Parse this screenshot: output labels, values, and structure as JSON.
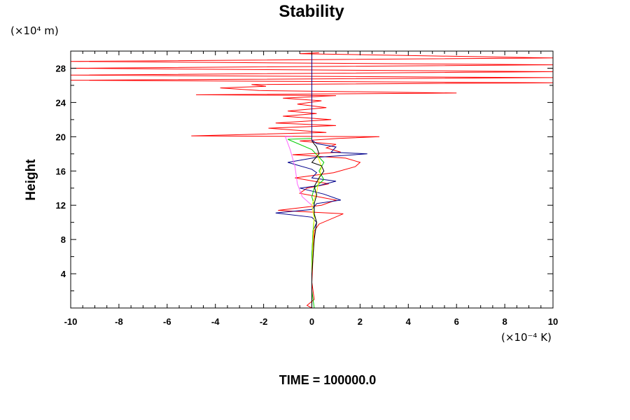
{
  "chart_data": {
    "type": "line",
    "title": "Stability",
    "ylabel": "Height",
    "y_unit": "(×10⁴ m)",
    "x_unit": "(×10⁻⁴ K)",
    "footer": "TIME = 100000.0",
    "xlim": [
      -10,
      10
    ],
    "ylim": [
      0,
      30
    ],
    "x_ticks": [
      -10,
      -8,
      -6,
      -4,
      -2,
      0,
      2,
      4,
      6,
      8,
      10
    ],
    "y_ticks": [
      4,
      8,
      12,
      16,
      20,
      24,
      28
    ],
    "grid": false,
    "legend": "none",
    "series": [
      {
        "color": "#ff0000",
        "points": [
          [
            0.0,
            0.0
          ],
          [
            -0.2,
            0.3
          ],
          [
            0.1,
            1.0
          ],
          [
            0.0,
            3.0
          ],
          [
            0.05,
            6.0
          ],
          [
            0.1,
            9.0
          ],
          [
            0.3,
            9.8
          ],
          [
            1.3,
            11.0
          ],
          [
            -1.4,
            11.4
          ],
          [
            0.4,
            12.0
          ],
          [
            1.0,
            12.6
          ],
          [
            -0.5,
            13.4
          ],
          [
            -0.2,
            14.0
          ],
          [
            0.7,
            14.5
          ],
          [
            -0.7,
            15.2
          ],
          [
            0.9,
            15.8
          ],
          [
            1.8,
            16.5
          ],
          [
            2.0,
            17.0
          ],
          [
            1.4,
            17.5
          ],
          [
            -0.8,
            17.9
          ],
          [
            1.2,
            18.2
          ],
          [
            0.6,
            18.7
          ],
          [
            1.0,
            19.1
          ],
          [
            -0.5,
            19.5
          ],
          [
            1.1,
            19.8
          ],
          [
            2.8,
            20.0
          ],
          [
            -5.0,
            20.1
          ],
          [
            0.6,
            20.5
          ],
          [
            -1.8,
            21.0
          ],
          [
            1.0,
            21.3
          ],
          [
            -1.5,
            21.6
          ],
          [
            0.8,
            22.0
          ],
          [
            -1.2,
            22.4
          ],
          [
            0.2,
            22.7
          ],
          [
            -1.0,
            23.0
          ],
          [
            0.6,
            23.4
          ],
          [
            -0.6,
            23.8
          ],
          [
            0.4,
            24.2
          ],
          [
            -1.2,
            24.5
          ],
          [
            1.0,
            24.8
          ],
          [
            -4.8,
            24.9
          ],
          [
            6.0,
            25.1
          ],
          [
            -2.2,
            25.4
          ],
          [
            -3.8,
            25.7
          ],
          [
            -1.9,
            25.9
          ],
          [
            -2.5,
            26.1
          ],
          [
            10.0,
            26.3
          ],
          [
            -10.0,
            26.6
          ],
          [
            10.0,
            26.9
          ],
          [
            -10.0,
            27.2
          ],
          [
            10.0,
            27.6
          ],
          [
            -10.0,
            28.0
          ],
          [
            10.0,
            28.4
          ],
          [
            -10.0,
            28.8
          ],
          [
            10.0,
            29.2
          ],
          [
            -0.5,
            29.7
          ],
          [
            0.3,
            29.8
          ]
        ]
      },
      {
        "color": "#00008b",
        "points": [
          [
            0.0,
            0.0
          ],
          [
            0.0,
            3.0
          ],
          [
            0.0,
            6.0
          ],
          [
            0.05,
            9.0
          ],
          [
            0.2,
            10.0
          ],
          [
            0.0,
            10.6
          ],
          [
            -1.5,
            11.1
          ],
          [
            0.0,
            11.5
          ],
          [
            0.2,
            12.2
          ],
          [
            1.2,
            12.6
          ],
          [
            0.5,
            13.3
          ],
          [
            -0.5,
            14.0
          ],
          [
            0.3,
            14.3
          ],
          [
            1.0,
            14.8
          ],
          [
            0.0,
            15.2
          ],
          [
            0.2,
            15.8
          ],
          [
            0.0,
            16.2
          ],
          [
            -1.0,
            17.0
          ],
          [
            0.2,
            17.6
          ],
          [
            2.3,
            18.0
          ],
          [
            0.8,
            18.2
          ],
          [
            1.0,
            18.8
          ],
          [
            0.2,
            19.2
          ],
          [
            0.0,
            19.6
          ],
          [
            0.0,
            30.0
          ]
        ]
      },
      {
        "color": "#00cc00",
        "points": [
          [
            0.1,
            0.0
          ],
          [
            0.0,
            2.0
          ],
          [
            0.0,
            6.0
          ],
          [
            0.05,
            9.0
          ],
          [
            0.1,
            10.5
          ],
          [
            0.1,
            12.0
          ],
          [
            0.0,
            13.0
          ],
          [
            0.1,
            14.0
          ],
          [
            0.5,
            15.0
          ],
          [
            0.3,
            16.0
          ],
          [
            0.5,
            17.0
          ],
          [
            0.0,
            18.5
          ],
          [
            -1.0,
            19.7
          ],
          [
            0.0,
            19.8
          ]
        ]
      },
      {
        "color": "#ffff00",
        "points": [
          [
            0.0,
            0.0
          ],
          [
            0.0,
            4.0
          ],
          [
            0.05,
            8.0
          ],
          [
            0.1,
            10.5
          ],
          [
            0.0,
            12.0
          ],
          [
            0.2,
            13.5
          ],
          [
            0.3,
            15.0
          ],
          [
            0.4,
            16.5
          ],
          [
            0.2,
            18.0
          ]
        ]
      },
      {
        "color": "#000000",
        "points": [
          [
            0.0,
            0.0
          ],
          [
            0.0,
            4.0
          ],
          [
            0.1,
            8.0
          ],
          [
            0.2,
            10.0
          ],
          [
            0.1,
            11.0
          ],
          [
            0.1,
            12.2
          ],
          [
            0.2,
            13.2
          ],
          [
            0.1,
            14.2
          ],
          [
            0.3,
            15.2
          ],
          [
            0.5,
            16.0
          ],
          [
            0.4,
            16.6
          ],
          [
            0.0,
            17.0
          ],
          [
            0.3,
            18.0
          ],
          [
            0.2,
            18.8
          ],
          [
            0.0,
            19.5
          ]
        ]
      },
      {
        "color": "#ff66ff",
        "points": [
          [
            0.0,
            12.0
          ],
          [
            -0.4,
            13.0
          ],
          [
            -0.6,
            14.5
          ],
          [
            -0.7,
            16.5
          ],
          [
            -0.9,
            18.5
          ],
          [
            -1.1,
            20.0
          ],
          [
            -0.8,
            20.0
          ]
        ]
      }
    ]
  }
}
